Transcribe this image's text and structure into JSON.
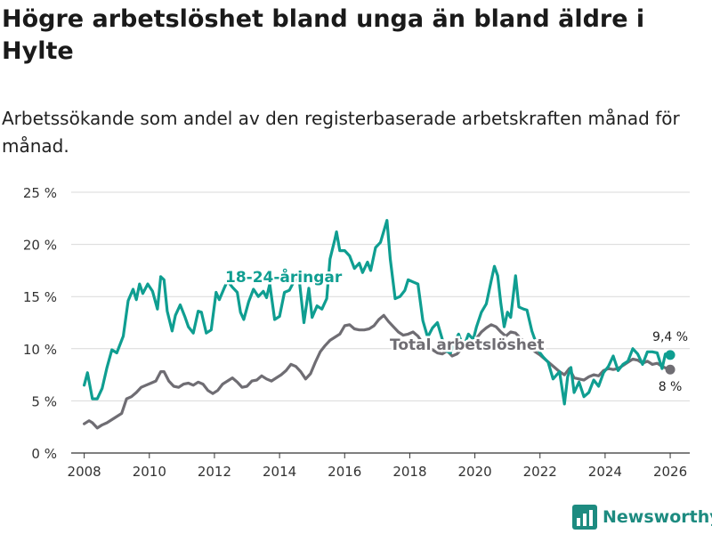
{
  "header": {
    "title": "Högre arbetslöshet bland unga än bland äldre i Hylte",
    "subtitle": "Arbetssökande som andel av den registerbaserade arbetskraften månad för månad."
  },
  "brand": {
    "name": "Newsworthy",
    "icon": "bar-chart-logo-icon"
  },
  "colors": {
    "youth": "#0f9e91",
    "total": "#6f6d73",
    "grid": "#d9d9d9",
    "axis": "#333333",
    "brand": "#1d8b80"
  },
  "chart_data": {
    "type": "line",
    "title": "Högre arbetslöshet bland unga än bland äldre i Hylte",
    "xlabel": "",
    "ylabel": "",
    "xlim": [
      2007.6,
      2026.6
    ],
    "ylim": [
      0,
      25
    ],
    "x_ticks": [
      2008,
      2010,
      2012,
      2014,
      2016,
      2018,
      2020,
      2022,
      2024,
      2026
    ],
    "x_tick_labels": [
      "2008",
      "2010",
      "2012",
      "2014",
      "2016",
      "2018",
      "2020",
      "2022",
      "2024",
      "2026"
    ],
    "y_ticks": [
      0,
      5,
      10,
      15,
      20,
      25
    ],
    "y_tick_labels": [
      "0 %",
      "5 %",
      "10 %",
      "15 %",
      "20 %",
      "25 %"
    ],
    "grid": true,
    "series": [
      {
        "name": "18-24-åringar",
        "label": "18-24-åringar",
        "end_label": "9,4 %",
        "points": [
          [
            2008.0,
            6.5
          ],
          [
            2008.1,
            7.7
          ],
          [
            2008.25,
            5.2
          ],
          [
            2008.4,
            5.2
          ],
          [
            2008.55,
            6.2
          ],
          [
            2008.7,
            8.2
          ],
          [
            2008.85,
            9.9
          ],
          [
            2009.0,
            9.6
          ],
          [
            2009.2,
            11.2
          ],
          [
            2009.35,
            14.6
          ],
          [
            2009.5,
            15.7
          ],
          [
            2009.6,
            14.7
          ],
          [
            2009.7,
            16.2
          ],
          [
            2009.8,
            15.3
          ],
          [
            2009.95,
            16.2
          ],
          [
            2010.1,
            15.5
          ],
          [
            2010.25,
            13.8
          ],
          [
            2010.35,
            16.9
          ],
          [
            2010.45,
            16.6
          ],
          [
            2010.55,
            13.6
          ],
          [
            2010.7,
            11.7
          ],
          [
            2010.8,
            13.2
          ],
          [
            2010.95,
            14.2
          ],
          [
            2011.1,
            13.0
          ],
          [
            2011.2,
            12.1
          ],
          [
            2011.35,
            11.5
          ],
          [
            2011.5,
            13.6
          ],
          [
            2011.6,
            13.5
          ],
          [
            2011.75,
            11.5
          ],
          [
            2011.9,
            11.8
          ],
          [
            2012.05,
            15.4
          ],
          [
            2012.15,
            14.7
          ],
          [
            2012.3,
            15.8
          ],
          [
            2012.4,
            16.5
          ],
          [
            2012.55,
            15.9
          ],
          [
            2012.7,
            15.4
          ],
          [
            2012.8,
            13.5
          ],
          [
            2012.9,
            12.8
          ],
          [
            2013.05,
            14.5
          ],
          [
            2013.2,
            15.7
          ],
          [
            2013.35,
            15.0
          ],
          [
            2013.5,
            15.5
          ],
          [
            2013.6,
            14.9
          ],
          [
            2013.7,
            16.2
          ],
          [
            2013.85,
            12.8
          ],
          [
            2014.0,
            13.1
          ],
          [
            2014.15,
            15.4
          ],
          [
            2014.3,
            15.6
          ],
          [
            2014.45,
            16.5
          ],
          [
            2014.6,
            16.7
          ],
          [
            2014.75,
            12.5
          ],
          [
            2014.9,
            15.8
          ],
          [
            2015.0,
            13.0
          ],
          [
            2015.15,
            14.1
          ],
          [
            2015.3,
            13.8
          ],
          [
            2015.45,
            14.8
          ],
          [
            2015.55,
            18.6
          ],
          [
            2015.7,
            20.5
          ],
          [
            2015.75,
            21.2
          ],
          [
            2015.85,
            19.4
          ],
          [
            2016.0,
            19.4
          ],
          [
            2016.15,
            18.9
          ],
          [
            2016.3,
            17.7
          ],
          [
            2016.45,
            18.2
          ],
          [
            2016.55,
            17.3
          ],
          [
            2016.7,
            18.3
          ],
          [
            2016.8,
            17.5
          ],
          [
            2016.95,
            19.7
          ],
          [
            2017.1,
            20.2
          ],
          [
            2017.3,
            22.3
          ],
          [
            2017.4,
            18.6
          ],
          [
            2017.55,
            14.8
          ],
          [
            2017.7,
            15.0
          ],
          [
            2017.85,
            15.6
          ],
          [
            2017.95,
            16.6
          ],
          [
            2018.1,
            16.4
          ],
          [
            2018.25,
            16.2
          ],
          [
            2018.4,
            12.7
          ],
          [
            2018.55,
            11.1
          ],
          [
            2018.7,
            12.0
          ],
          [
            2018.85,
            12.5
          ],
          [
            2019.0,
            10.9
          ],
          [
            2019.1,
            9.8
          ],
          [
            2019.25,
            9.6
          ],
          [
            2019.4,
            10.8
          ],
          [
            2019.5,
            11.4
          ],
          [
            2019.65,
            10.1
          ],
          [
            2019.8,
            11.4
          ],
          [
            2019.95,
            10.9
          ],
          [
            2020.05,
            12.1
          ],
          [
            2020.2,
            13.5
          ],
          [
            2020.35,
            14.3
          ],
          [
            2020.5,
            16.5
          ],
          [
            2020.6,
            17.9
          ],
          [
            2020.7,
            17.0
          ],
          [
            2020.8,
            14.3
          ],
          [
            2020.9,
            12.1
          ],
          [
            2021.0,
            13.5
          ],
          [
            2021.1,
            13.0
          ],
          [
            2021.25,
            17.0
          ],
          [
            2021.35,
            14.0
          ],
          [
            2021.5,
            13.8
          ],
          [
            2021.6,
            13.7
          ],
          [
            2021.75,
            11.7
          ],
          [
            2021.85,
            10.8
          ],
          [
            2022.0,
            9.6
          ],
          [
            2022.1,
            9.2
          ],
          [
            2022.25,
            8.7
          ],
          [
            2022.4,
            7.1
          ],
          [
            2022.6,
            7.8
          ],
          [
            2022.75,
            4.7
          ],
          [
            2022.85,
            7.3
          ],
          [
            2022.95,
            8.2
          ],
          [
            2023.05,
            5.8
          ],
          [
            2023.2,
            6.8
          ],
          [
            2023.35,
            5.4
          ],
          [
            2023.5,
            5.8
          ],
          [
            2023.65,
            7.0
          ],
          [
            2023.8,
            6.4
          ],
          [
            2023.95,
            7.7
          ],
          [
            2024.1,
            8.3
          ],
          [
            2024.25,
            9.3
          ],
          [
            2024.4,
            7.9
          ],
          [
            2024.55,
            8.5
          ],
          [
            2024.7,
            8.8
          ],
          [
            2024.85,
            10.0
          ],
          [
            2025.0,
            9.5
          ],
          [
            2025.15,
            8.5
          ],
          [
            2025.3,
            9.7
          ],
          [
            2025.45,
            9.7
          ],
          [
            2025.6,
            9.6
          ],
          [
            2025.75,
            8.1
          ],
          [
            2025.85,
            9.5
          ],
          [
            2026.0,
            9.4
          ]
        ]
      },
      {
        "name": "Total arbetslöshet",
        "label": "Total arbetslöshet",
        "end_label": "8 %",
        "points": [
          [
            2008.0,
            2.8
          ],
          [
            2008.15,
            3.1
          ],
          [
            2008.25,
            2.9
          ],
          [
            2008.4,
            2.4
          ],
          [
            2008.55,
            2.7
          ],
          [
            2008.7,
            2.9
          ],
          [
            2008.85,
            3.2
          ],
          [
            2009.0,
            3.5
          ],
          [
            2009.15,
            3.8
          ],
          [
            2009.3,
            5.2
          ],
          [
            2009.45,
            5.4
          ],
          [
            2009.6,
            5.8
          ],
          [
            2009.75,
            6.3
          ],
          [
            2009.9,
            6.5
          ],
          [
            2010.05,
            6.7
          ],
          [
            2010.2,
            6.9
          ],
          [
            2010.35,
            7.8
          ],
          [
            2010.45,
            7.8
          ],
          [
            2010.6,
            6.9
          ],
          [
            2010.75,
            6.4
          ],
          [
            2010.9,
            6.3
          ],
          [
            2011.05,
            6.6
          ],
          [
            2011.2,
            6.7
          ],
          [
            2011.35,
            6.5
          ],
          [
            2011.5,
            6.8
          ],
          [
            2011.65,
            6.6
          ],
          [
            2011.8,
            6.0
          ],
          [
            2011.95,
            5.7
          ],
          [
            2012.1,
            6.0
          ],
          [
            2012.25,
            6.6
          ],
          [
            2012.4,
            6.9
          ],
          [
            2012.55,
            7.2
          ],
          [
            2012.7,
            6.8
          ],
          [
            2012.85,
            6.3
          ],
          [
            2013.0,
            6.4
          ],
          [
            2013.15,
            6.9
          ],
          [
            2013.3,
            7.0
          ],
          [
            2013.45,
            7.4
          ],
          [
            2013.6,
            7.1
          ],
          [
            2013.75,
            6.9
          ],
          [
            2013.9,
            7.2
          ],
          [
            2014.05,
            7.5
          ],
          [
            2014.2,
            7.9
          ],
          [
            2014.35,
            8.5
          ],
          [
            2014.5,
            8.3
          ],
          [
            2014.65,
            7.8
          ],
          [
            2014.8,
            7.1
          ],
          [
            2014.95,
            7.6
          ],
          [
            2015.1,
            8.7
          ],
          [
            2015.25,
            9.7
          ],
          [
            2015.4,
            10.3
          ],
          [
            2015.55,
            10.8
          ],
          [
            2015.7,
            11.1
          ],
          [
            2015.85,
            11.4
          ],
          [
            2016.0,
            12.2
          ],
          [
            2016.15,
            12.3
          ],
          [
            2016.3,
            11.9
          ],
          [
            2016.45,
            11.8
          ],
          [
            2016.6,
            11.8
          ],
          [
            2016.75,
            11.9
          ],
          [
            2016.9,
            12.2
          ],
          [
            2017.05,
            12.8
          ],
          [
            2017.2,
            13.2
          ],
          [
            2017.35,
            12.6
          ],
          [
            2017.5,
            12.1
          ],
          [
            2017.65,
            11.6
          ],
          [
            2017.8,
            11.3
          ],
          [
            2017.95,
            11.4
          ],
          [
            2018.1,
            11.6
          ],
          [
            2018.25,
            11.2
          ],
          [
            2018.4,
            10.5
          ],
          [
            2018.55,
            10.1
          ],
          [
            2018.7,
            9.9
          ],
          [
            2018.85,
            9.6
          ],
          [
            2019.0,
            9.5
          ],
          [
            2019.15,
            9.8
          ],
          [
            2019.3,
            9.3
          ],
          [
            2019.45,
            9.5
          ],
          [
            2019.6,
            10.0
          ],
          [
            2019.75,
            10.6
          ],
          [
            2019.9,
            10.8
          ],
          [
            2020.05,
            11.0
          ],
          [
            2020.2,
            11.6
          ],
          [
            2020.35,
            12.0
          ],
          [
            2020.5,
            12.3
          ],
          [
            2020.65,
            12.1
          ],
          [
            2020.8,
            11.6
          ],
          [
            2020.95,
            11.2
          ],
          [
            2021.1,
            11.6
          ],
          [
            2021.25,
            11.5
          ],
          [
            2021.4,
            11.0
          ],
          [
            2021.55,
            10.5
          ],
          [
            2021.7,
            10.0
          ],
          [
            2021.85,
            9.7
          ],
          [
            2022.0,
            9.4
          ],
          [
            2022.15,
            9.0
          ],
          [
            2022.3,
            8.6
          ],
          [
            2022.45,
            8.2
          ],
          [
            2022.6,
            7.8
          ],
          [
            2022.75,
            7.5
          ],
          [
            2022.9,
            8.1
          ],
          [
            2023.05,
            7.2
          ],
          [
            2023.2,
            7.1
          ],
          [
            2023.35,
            7.0
          ],
          [
            2023.5,
            7.3
          ],
          [
            2023.65,
            7.5
          ],
          [
            2023.8,
            7.4
          ],
          [
            2023.95,
            7.9
          ],
          [
            2024.1,
            8.1
          ],
          [
            2024.25,
            8.0
          ],
          [
            2024.4,
            8.1
          ],
          [
            2024.55,
            8.4
          ],
          [
            2024.7,
            8.7
          ],
          [
            2024.85,
            9.0
          ],
          [
            2025.0,
            8.9
          ],
          [
            2025.15,
            8.6
          ],
          [
            2025.3,
            8.8
          ],
          [
            2025.45,
            8.5
          ],
          [
            2025.6,
            8.6
          ],
          [
            2025.75,
            8.3
          ],
          [
            2025.9,
            8.1
          ],
          [
            2026.0,
            8.0
          ]
        ]
      }
    ]
  }
}
